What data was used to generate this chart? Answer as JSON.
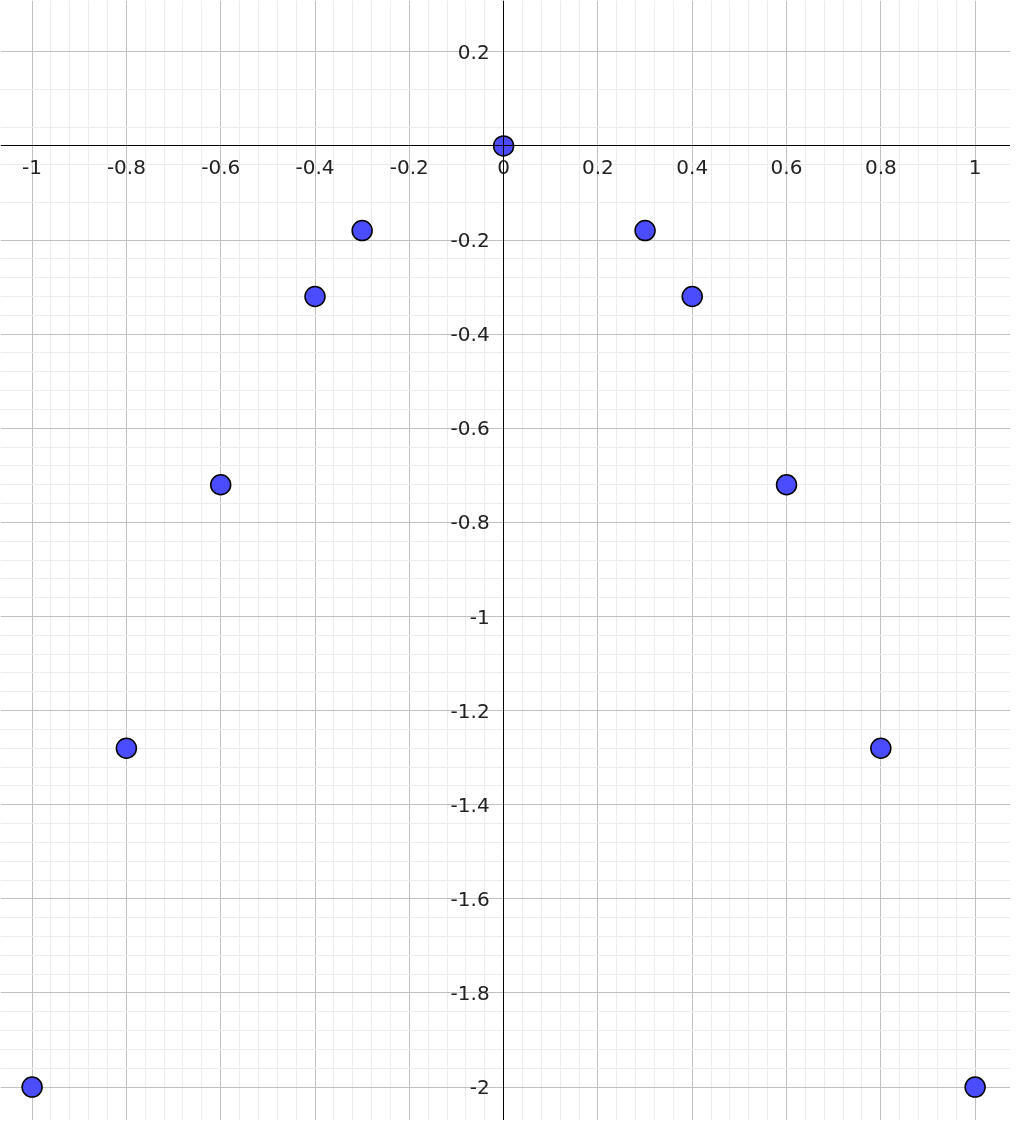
{
  "chart_data": {
    "type": "scatter",
    "x": [
      -1,
      -0.8,
      -0.6,
      -0.4,
      -0.3,
      0,
      0.3,
      0.4,
      0.6,
      0.8,
      1
    ],
    "series": [
      {
        "color": "#4c4cff",
        "values": [
          -2,
          -1.28,
          -0.72,
          -0.32,
          -0.18,
          0,
          -0.18,
          -0.32,
          -0.72,
          -1.28,
          -2
        ]
      }
    ],
    "xlim": [
      -1.067,
      1.075
    ],
    "ylim": [
      -2.071,
      0.309
    ],
    "xticks": [
      -1,
      -0.8,
      -0.6,
      -0.4,
      -0.2,
      0,
      0.2,
      0.4,
      0.6,
      0.8,
      1
    ],
    "yticks": [
      0.2,
      -0.2,
      -0.4,
      -0.6,
      -0.8,
      -1,
      -1.2,
      -1.4,
      -1.6,
      -1.8,
      -2
    ],
    "grid": true,
    "marker": "circle"
  }
}
